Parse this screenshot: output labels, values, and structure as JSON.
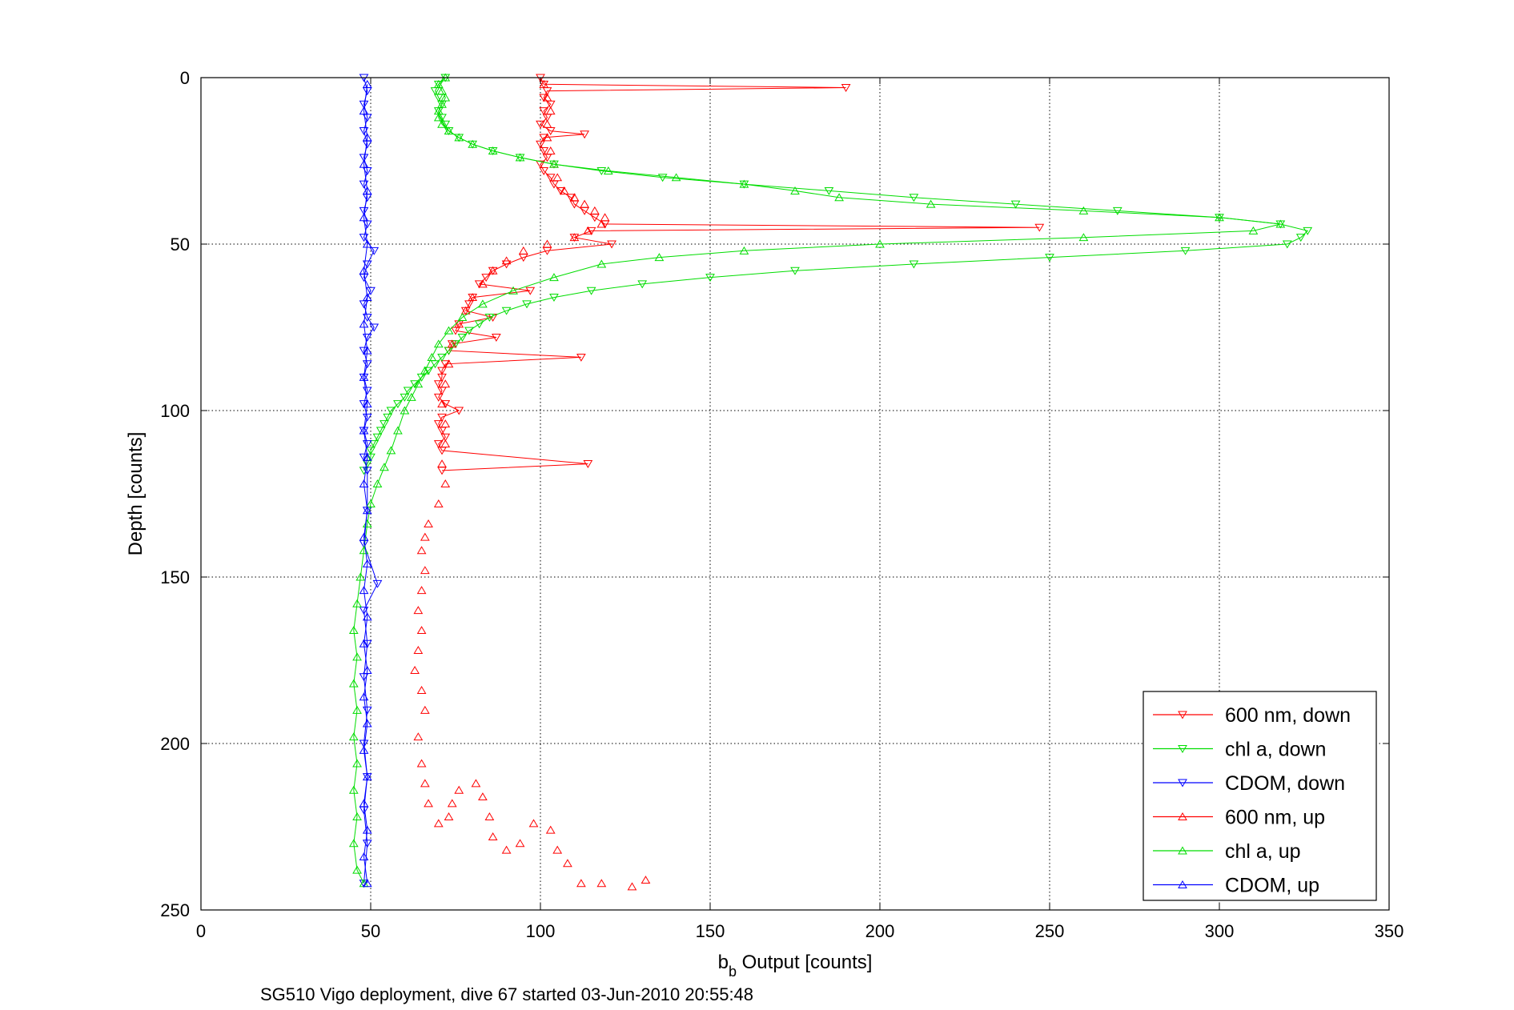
{
  "chart_data": {
    "type": "scatter",
    "title": "",
    "xlabel": "b_b Output [counts]",
    "xlabel_main": "b",
    "xlabel_sub": "b",
    "xlabel_rest": " Output [counts]",
    "ylabel": "Depth [counts]",
    "caption": "SG510 Vigo deployment, dive 67 started 03-Jun-2010 20:55:48",
    "xlim": [
      0,
      350
    ],
    "ylim": [
      0,
      250
    ],
    "y_reversed": true,
    "xticks": [
      0,
      50,
      100,
      150,
      200,
      250,
      300,
      350
    ],
    "yticks": [
      0,
      50,
      100,
      150,
      200,
      250
    ],
    "grid": true,
    "legend_position": "bottom-right",
    "series": [
      {
        "name": "600 nm, down",
        "color": "#ff0000",
        "marker": "triangle-down",
        "lines": true,
        "points": [
          [
            100,
            0
          ],
          [
            101,
            2
          ],
          [
            190,
            3
          ],
          [
            102,
            4
          ],
          [
            101,
            6
          ],
          [
            103,
            8
          ],
          [
            101,
            10
          ],
          [
            102,
            12
          ],
          [
            100,
            14
          ],
          [
            103,
            16
          ],
          [
            113,
            17
          ],
          [
            101,
            18
          ],
          [
            100,
            20
          ],
          [
            101,
            22
          ],
          [
            102,
            24
          ],
          [
            100,
            26
          ],
          [
            101,
            28
          ],
          [
            103,
            30
          ],
          [
            104,
            32
          ],
          [
            106,
            34
          ],
          [
            109,
            36
          ],
          [
            110,
            38
          ],
          [
            113,
            40
          ],
          [
            116,
            42
          ],
          [
            119,
            44
          ],
          [
            247,
            45
          ],
          [
            115,
            46
          ],
          [
            110,
            48
          ],
          [
            121,
            50
          ],
          [
            102,
            52
          ],
          [
            95,
            54
          ],
          [
            90,
            56
          ],
          [
            86,
            58
          ],
          [
            84,
            60
          ],
          [
            82,
            62
          ],
          [
            97,
            64
          ],
          [
            80,
            66
          ],
          [
            79,
            68
          ],
          [
            78,
            70
          ],
          [
            86,
            72
          ],
          [
            76,
            74
          ],
          [
            75,
            76
          ],
          [
            87,
            78
          ],
          [
            74,
            80
          ],
          [
            73,
            82
          ],
          [
            112,
            84
          ],
          [
            72,
            86
          ],
          [
            71,
            88
          ],
          [
            71,
            90
          ],
          [
            70,
            92
          ],
          [
            71,
            94
          ],
          [
            70,
            96
          ],
          [
            72,
            98
          ],
          [
            76,
            100
          ],
          [
            71,
            102
          ],
          [
            70,
            104
          ],
          [
            71,
            106
          ],
          [
            72,
            108
          ],
          [
            70,
            110
          ],
          [
            71,
            112
          ],
          [
            114,
            116
          ],
          [
            71,
            118
          ]
        ]
      },
      {
        "name": "chl a, down",
        "color": "#00dd00",
        "marker": "triangle-down",
        "lines": true,
        "points": [
          [
            72,
            0
          ],
          [
            70,
            2
          ],
          [
            69,
            4
          ],
          [
            70,
            6
          ],
          [
            71,
            8
          ],
          [
            70,
            10
          ],
          [
            71,
            12
          ],
          [
            72,
            14
          ],
          [
            73,
            16
          ],
          [
            76,
            18
          ],
          [
            80,
            20
          ],
          [
            86,
            22
          ],
          [
            94,
            24
          ],
          [
            104,
            26
          ],
          [
            118,
            28
          ],
          [
            136,
            30
          ],
          [
            160,
            32
          ],
          [
            185,
            34
          ],
          [
            210,
            36
          ],
          [
            240,
            38
          ],
          [
            270,
            40
          ],
          [
            300,
            42
          ],
          [
            318,
            44
          ],
          [
            326,
            46
          ],
          [
            324,
            48
          ],
          [
            320,
            50
          ],
          [
            290,
            52
          ],
          [
            250,
            54
          ],
          [
            210,
            56
          ],
          [
            175,
            58
          ],
          [
            150,
            60
          ],
          [
            130,
            62
          ],
          [
            115,
            64
          ],
          [
            104,
            66
          ],
          [
            96,
            68
          ],
          [
            90,
            70
          ],
          [
            85,
            72
          ],
          [
            82,
            74
          ],
          [
            79,
            76
          ],
          [
            77,
            78
          ],
          [
            75,
            80
          ],
          [
            73,
            82
          ],
          [
            71,
            84
          ],
          [
            69,
            86
          ],
          [
            67,
            88
          ],
          [
            65,
            90
          ],
          [
            63,
            92
          ],
          [
            61,
            94
          ],
          [
            60,
            96
          ],
          [
            58,
            98
          ],
          [
            56,
            100
          ],
          [
            55,
            102
          ],
          [
            54,
            104
          ],
          [
            53,
            106
          ],
          [
            52,
            108
          ],
          [
            51,
            110
          ],
          [
            50,
            112
          ],
          [
            50,
            114
          ],
          [
            49,
            116
          ],
          [
            48,
            118
          ]
        ]
      },
      {
        "name": "CDOM, down",
        "color": "#0000ff",
        "marker": "triangle-down",
        "lines": true,
        "points": [
          [
            48,
            0
          ],
          [
            49,
            4
          ],
          [
            48,
            8
          ],
          [
            49,
            12
          ],
          [
            48,
            16
          ],
          [
            49,
            20
          ],
          [
            48,
            24
          ],
          [
            49,
            28
          ],
          [
            48,
            32
          ],
          [
            49,
            36
          ],
          [
            48,
            40
          ],
          [
            49,
            44
          ],
          [
            48,
            48
          ],
          [
            51,
            52
          ],
          [
            49,
            56
          ],
          [
            48,
            60
          ],
          [
            50,
            64
          ],
          [
            48,
            68
          ],
          [
            49,
            72
          ],
          [
            51,
            75
          ],
          [
            49,
            78
          ],
          [
            48,
            82
          ],
          [
            49,
            86
          ],
          [
            48,
            90
          ],
          [
            49,
            94
          ],
          [
            48,
            98
          ],
          [
            49,
            102
          ],
          [
            48,
            106
          ],
          [
            49,
            110
          ],
          [
            48,
            114
          ],
          [
            49,
            118
          ],
          [
            49,
            130
          ],
          [
            48,
            140
          ],
          [
            52,
            152
          ],
          [
            48,
            160
          ],
          [
            49,
            170
          ],
          [
            48,
            180
          ],
          [
            49,
            190
          ],
          [
            48,
            200
          ],
          [
            49,
            210
          ],
          [
            48,
            220
          ],
          [
            49,
            230
          ],
          [
            48,
            242
          ]
        ]
      },
      {
        "name": "600 nm, up",
        "color": "#ff0000",
        "marker": "triangle-up",
        "lines": false,
        "points": [
          [
            131,
            241
          ],
          [
            127,
            243
          ],
          [
            118,
            242
          ],
          [
            112,
            242
          ],
          [
            108,
            236
          ],
          [
            105,
            232
          ],
          [
            103,
            226
          ],
          [
            98,
            224
          ],
          [
            94,
            230
          ],
          [
            90,
            232
          ],
          [
            86,
            228
          ],
          [
            85,
            222
          ],
          [
            83,
            216
          ],
          [
            81,
            212
          ],
          [
            76,
            214
          ],
          [
            74,
            218
          ],
          [
            73,
            222
          ],
          [
            70,
            224
          ],
          [
            67,
            218
          ],
          [
            66,
            212
          ],
          [
            65,
            206
          ],
          [
            64,
            198
          ],
          [
            66,
            190
          ],
          [
            65,
            184
          ],
          [
            63,
            178
          ],
          [
            64,
            172
          ],
          [
            65,
            166
          ],
          [
            64,
            160
          ],
          [
            65,
            154
          ],
          [
            66,
            148
          ],
          [
            65,
            142
          ],
          [
            66,
            138
          ],
          [
            67,
            134
          ],
          [
            70,
            128
          ],
          [
            72,
            122
          ],
          [
            71,
            116
          ],
          [
            72,
            110
          ],
          [
            72,
            104
          ],
          [
            71,
            98
          ],
          [
            72,
            92
          ],
          [
            73,
            86
          ],
          [
            74,
            80
          ],
          [
            76,
            74
          ],
          [
            78,
            70
          ],
          [
            80,
            66
          ],
          [
            83,
            62
          ],
          [
            86,
            58
          ],
          [
            90,
            55
          ],
          [
            95,
            52
          ],
          [
            102,
            50
          ],
          [
            110,
            48
          ],
          [
            114,
            46
          ],
          [
            118,
            44
          ],
          [
            119,
            42
          ],
          [
            116,
            40
          ],
          [
            113,
            38
          ],
          [
            110,
            36
          ],
          [
            107,
            34
          ],
          [
            105,
            30
          ],
          [
            104,
            26
          ],
          [
            103,
            22
          ],
          [
            102,
            18
          ],
          [
            102,
            14
          ],
          [
            103,
            10
          ],
          [
            102,
            6
          ],
          [
            101,
            2
          ]
        ]
      },
      {
        "name": "chl a, up",
        "color": "#00dd00",
        "marker": "triangle-up",
        "lines": true,
        "points": [
          [
            48,
            242
          ],
          [
            46,
            238
          ],
          [
            45,
            230
          ],
          [
            46,
            222
          ],
          [
            45,
            214
          ],
          [
            46,
            206
          ],
          [
            45,
            198
          ],
          [
            46,
            190
          ],
          [
            45,
            182
          ],
          [
            46,
            174
          ],
          [
            45,
            166
          ],
          [
            46,
            158
          ],
          [
            47,
            150
          ],
          [
            48,
            142
          ],
          [
            49,
            134
          ],
          [
            50,
            128
          ],
          [
            52,
            122
          ],
          [
            54,
            117
          ],
          [
            56,
            112
          ],
          [
            58,
            106
          ],
          [
            60,
            100
          ],
          [
            62,
            96
          ],
          [
            64,
            92
          ],
          [
            66,
            88
          ],
          [
            68,
            84
          ],
          [
            70,
            80
          ],
          [
            73,
            76
          ],
          [
            77,
            72
          ],
          [
            83,
            68
          ],
          [
            92,
            64
          ],
          [
            104,
            60
          ],
          [
            118,
            56
          ],
          [
            135,
            54
          ],
          [
            160,
            52
          ],
          [
            200,
            50
          ],
          [
            260,
            48
          ],
          [
            310,
            46
          ],
          [
            318,
            44
          ],
          [
            300,
            42
          ],
          [
            260,
            40
          ],
          [
            215,
            38
          ],
          [
            188,
            36
          ],
          [
            175,
            34
          ],
          [
            160,
            32
          ],
          [
            140,
            30
          ],
          [
            120,
            28
          ],
          [
            104,
            26
          ],
          [
            94,
            24
          ],
          [
            86,
            22
          ],
          [
            80,
            20
          ],
          [
            76,
            18
          ],
          [
            73,
            16
          ],
          [
            71,
            14
          ],
          [
            70,
            12
          ],
          [
            70,
            10
          ],
          [
            71,
            8
          ],
          [
            72,
            6
          ],
          [
            71,
            4
          ],
          [
            70,
            2
          ],
          [
            72,
            0
          ]
        ]
      },
      {
        "name": "CDOM, up",
        "color": "#0000ff",
        "marker": "triangle-up",
        "lines": true,
        "points": [
          [
            49,
            242
          ],
          [
            48,
            234
          ],
          [
            49,
            226
          ],
          [
            48,
            218
          ],
          [
            49,
            210
          ],
          [
            48,
            202
          ],
          [
            49,
            194
          ],
          [
            48,
            186
          ],
          [
            49,
            178
          ],
          [
            48,
            170
          ],
          [
            49,
            162
          ],
          [
            48,
            154
          ],
          [
            49,
            146
          ],
          [
            48,
            138
          ],
          [
            49,
            130
          ],
          [
            48,
            122
          ],
          [
            49,
            114
          ],
          [
            48,
            106
          ],
          [
            49,
            98
          ],
          [
            48,
            90
          ],
          [
            49,
            82
          ],
          [
            48,
            74
          ],
          [
            49,
            66
          ],
          [
            48,
            58
          ],
          [
            49,
            50
          ],
          [
            48,
            42
          ],
          [
            49,
            34
          ],
          [
            48,
            26
          ],
          [
            49,
            18
          ],
          [
            48,
            10
          ],
          [
            49,
            2
          ]
        ]
      }
    ]
  }
}
